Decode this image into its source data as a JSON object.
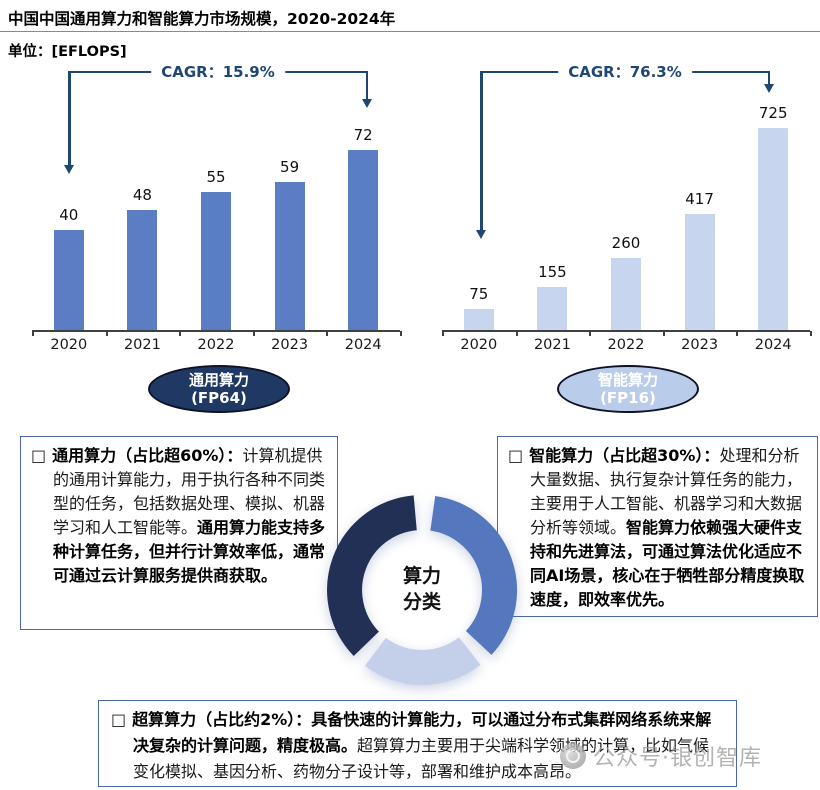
{
  "header": {
    "title": "中国中国通用算力和智能算力市场规模，2020-2024年",
    "unit_label": "单位：[EFLOPS]"
  },
  "colors": {
    "bar_general": "#5B7DC3",
    "bar_intelligent": "#C8D5EE",
    "bracket": "#1F4773",
    "pill_general_bg": "#1F3864",
    "pill_intelligent_bg": "#B9CCEA",
    "box_border": "#4a67ad",
    "donut_dark": "#233055",
    "donut_medium": "#5577BD",
    "donut_light": "#C4D0EA"
  },
  "chart_data": [
    {
      "type": "bar",
      "title": "通用算力（FP64）市场规模",
      "unit": "EFLOPS",
      "categories": [
        "2020",
        "2021",
        "2022",
        "2023",
        "2024"
      ],
      "values": [
        40,
        48,
        55,
        59,
        72
      ],
      "cagr_label": "CAGR：15.9%",
      "bar_color": "#5B7DC3",
      "ylim": [
        0,
        80
      ],
      "grid": false,
      "data_labels": true
    },
    {
      "type": "bar",
      "title": "智能算力（FP16）市场规模",
      "unit": "EFLOPS",
      "categories": [
        "2020",
        "2021",
        "2022",
        "2023",
        "2024"
      ],
      "values": [
        75,
        155,
        260,
        417,
        725
      ],
      "cagr_label": "CAGR：76.3%",
      "bar_color": "#C8D5EE",
      "ylim": [
        0,
        800
      ],
      "grid": false,
      "data_labels": true
    },
    {
      "type": "pie",
      "title": "算力分类",
      "center_label_line1": "算力",
      "center_label_line2": "分类",
      "slices": [
        {
          "name": "dark-navy-segment",
          "color": "#233055"
        },
        {
          "name": "medium-blue-segment",
          "color": "#5577BD"
        },
        {
          "name": "light-blue-segment",
          "color": "#C4D0EA"
        }
      ]
    }
  ],
  "legend_pills": [
    {
      "line1": "通用算力",
      "line2": "(FP64)"
    },
    {
      "line1": "智能算力",
      "line2": "(FP16)"
    }
  ],
  "info_boxes": {
    "bullet": "□",
    "general": {
      "heading": "通用算力（占比超60%）：",
      "body_regular": "计算机提供的通用计算能力，用于执行各种不同类型的任务，包括数据处理、模拟、机器学习和人工智能等。",
      "body_bold": "通用算力能支持多种计算任务，但并行计算效率低，通常可通过云计算服务提供商获取。"
    },
    "intelligent": {
      "heading": "智能算力（占比超30%）：",
      "body_regular": "处理和分析大量数据、执行复杂计算任务的能力，主要用于人工智能、机器学习和大数据分析等领域。",
      "body_bold": "智能算力依赖强大硬件支持和先进算法，可通过算法优化适应不同AI场景，核心在于牺牲部分精度换取速度，即效率优先。"
    },
    "super": {
      "heading": "超算算力（占比约2%）：",
      "body_bold": "具备快速的计算能力，可以通过分布式集群网络系统来解决复杂的计算问题，精度极高。",
      "body_regular": "超算算力主要用于尖端科学领域的计算，比如气候变化模拟、基因分析、药物分子设计等，部署和维护成本高昂。"
    }
  },
  "watermark": {
    "text": "公众号·银创智库"
  }
}
